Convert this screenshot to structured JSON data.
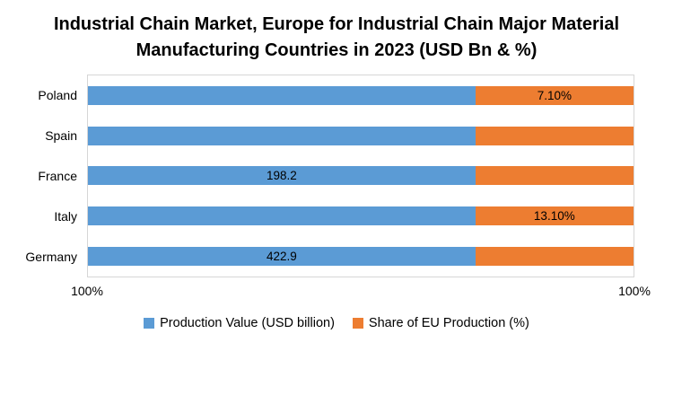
{
  "chart_data": {
    "type": "bar",
    "orientation": "horizontal",
    "stacked": true,
    "title": "Industrial Chain Market, Europe for Industrial Chain Major Material Manufacturing Countries in 2023  (USD Bn & %)",
    "categories": [
      "Poland",
      "Spain",
      "France",
      "Italy",
      "Germany"
    ],
    "series": [
      {
        "name": "Production Value (USD billion)",
        "color": "#5b9bd5",
        "fractions": [
          0.71,
          0.71,
          0.71,
          0.71,
          0.71
        ],
        "labels": [
          "",
          "",
          "198.2",
          "",
          "422.9"
        ]
      },
      {
        "name": "Share of EU Production (%)",
        "color": "#ed7d31",
        "fractions": [
          0.29,
          0.29,
          0.29,
          0.29,
          0.29
        ],
        "labels": [
          "7.10%",
          "",
          "",
          "13.10%",
          ""
        ]
      }
    ],
    "known_values": {
      "france_production_value_usd_bn": 198.2,
      "germany_production_value_usd_bn": 422.9,
      "poland_share_of_eu_production_pct": 7.1,
      "italy_share_of_eu_production_pct": 13.1
    },
    "x_ticks": [
      "100%",
      "100%"
    ],
    "legend_position": "bottom",
    "grid": false
  }
}
